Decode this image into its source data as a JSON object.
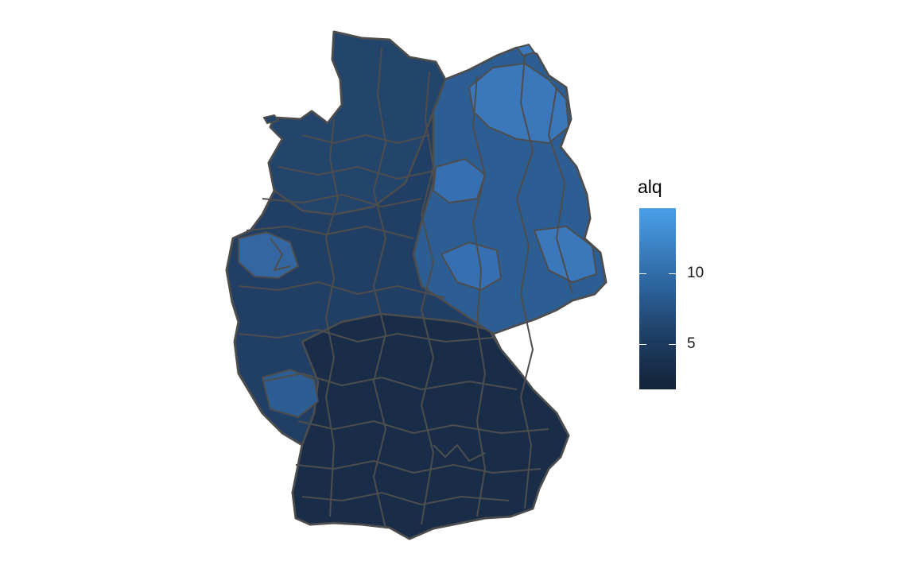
{
  "legend": {
    "title": "alq",
    "ticks": [
      {
        "label": "10",
        "value": 10
      },
      {
        "label": "5",
        "value": 5
      }
    ],
    "range": [
      1.8,
      14.6
    ],
    "low_color": "#132338",
    "high_color": "#4a9fe8"
  },
  "map": {
    "region_border_color": "#4d4d4d",
    "colors": {
      "south": "#1a2d48",
      "west": "#213f64",
      "north": "#23456b",
      "east": "#2d5e93",
      "east_high": "#3a78bb"
    }
  }
}
